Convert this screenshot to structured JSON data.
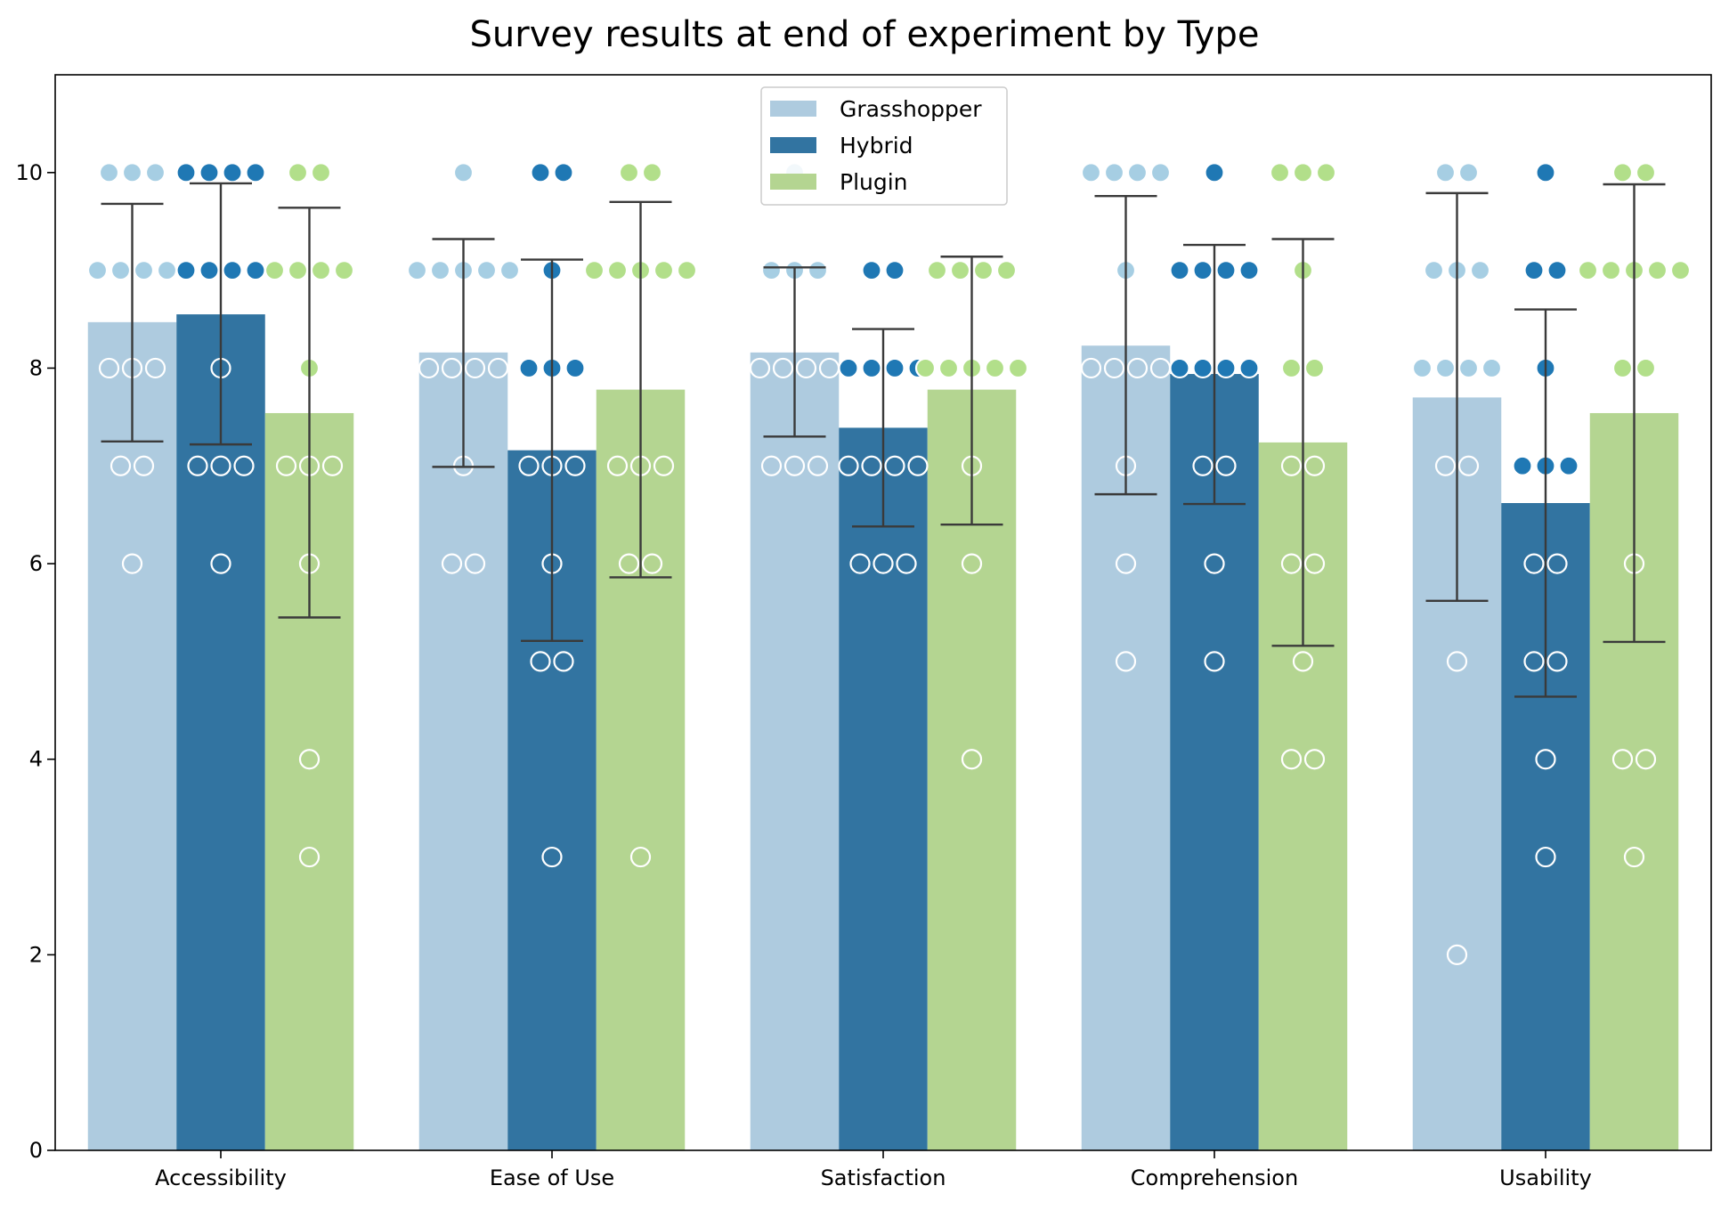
{
  "chart_data": {
    "type": "bar",
    "title": "Survey results at end of experiment by Type",
    "xlabel": "",
    "ylabel": "",
    "ylim": [
      0,
      11
    ],
    "yticks": [
      0,
      2,
      4,
      6,
      8,
      10
    ],
    "categories": [
      "Accessibility",
      "Ease of Use",
      "Satisfaction",
      "Comprehension",
      "Usability"
    ],
    "legend_position": "top-center",
    "series": [
      {
        "name": "Grasshopper",
        "color": "#aecbdf",
        "point_color": "#a6cee3",
        "values": [
          8.47,
          8.16,
          8.16,
          8.23,
          7.7
        ],
        "err_low": [
          7.25,
          6.99,
          7.3,
          6.71,
          5.62
        ],
        "err_high": [
          9.68,
          9.32,
          9.03,
          9.76,
          9.79
        ],
        "points": [
          [
            10,
            10,
            10,
            9,
            9,
            9,
            9,
            8,
            8,
            8,
            7,
            7,
            6
          ],
          [
            10,
            9,
            9,
            9,
            9,
            9,
            8,
            8,
            8,
            8,
            7,
            6,
            6
          ],
          [
            10,
            9,
            9,
            9,
            8,
            8,
            8,
            8,
            7,
            7,
            7
          ],
          [
            10,
            10,
            10,
            10,
            9,
            8,
            8,
            8,
            8,
            7,
            6,
            5
          ],
          [
            10,
            10,
            9,
            9,
            9,
            8,
            8,
            8,
            8,
            7,
            7,
            5,
            2
          ]
        ]
      },
      {
        "name": "Hybrid",
        "color": "#3274a1",
        "point_color": "#1f78b4",
        "values": [
          8.55,
          7.16,
          7.39,
          7.94,
          6.62
        ],
        "err_low": [
          7.22,
          5.21,
          6.38,
          6.61,
          4.64
        ],
        "err_high": [
          9.89,
          9.11,
          8.4,
          9.26,
          8.6
        ],
        "points": [
          [
            10,
            10,
            10,
            10,
            9,
            9,
            9,
            9,
            8,
            7,
            7,
            7,
            6
          ],
          [
            10,
            10,
            9,
            8,
            8,
            8,
            7,
            7,
            7,
            6,
            5,
            5,
            3
          ],
          [
            9,
            9,
            8,
            8,
            8,
            8,
            7,
            7,
            7,
            7,
            6,
            6,
            6
          ],
          [
            10,
            9,
            9,
            9,
            9,
            8,
            8,
            8,
            8,
            7,
            7,
            6,
            5
          ],
          [
            10,
            9,
            9,
            8,
            7,
            7,
            7,
            6,
            6,
            5,
            5,
            4,
            3
          ]
        ]
      },
      {
        "name": "Plugin",
        "color": "#b4d591",
        "point_color": "#b2df8a",
        "values": [
          7.54,
          7.78,
          7.78,
          7.24,
          7.54
        ],
        "err_low": [
          5.45,
          5.86,
          6.4,
          5.16,
          5.2
        ],
        "err_high": [
          9.64,
          9.7,
          9.14,
          9.32,
          9.88
        ],
        "points": [
          [
            10,
            10,
            9,
            9,
            9,
            9,
            8,
            7,
            7,
            7,
            6,
            4,
            3
          ],
          [
            10,
            10,
            9,
            9,
            9,
            9,
            9,
            7,
            7,
            7,
            6,
            6,
            3
          ],
          [
            9,
            9,
            9,
            9,
            8,
            8,
            8,
            8,
            8,
            7,
            6,
            4
          ],
          [
            10,
            10,
            10,
            9,
            8,
            8,
            7,
            7,
            6,
            6,
            5,
            4,
            4
          ],
          [
            10,
            10,
            9,
            9,
            9,
            9,
            9,
            8,
            8,
            6,
            4,
            4,
            3
          ]
        ]
      }
    ]
  }
}
